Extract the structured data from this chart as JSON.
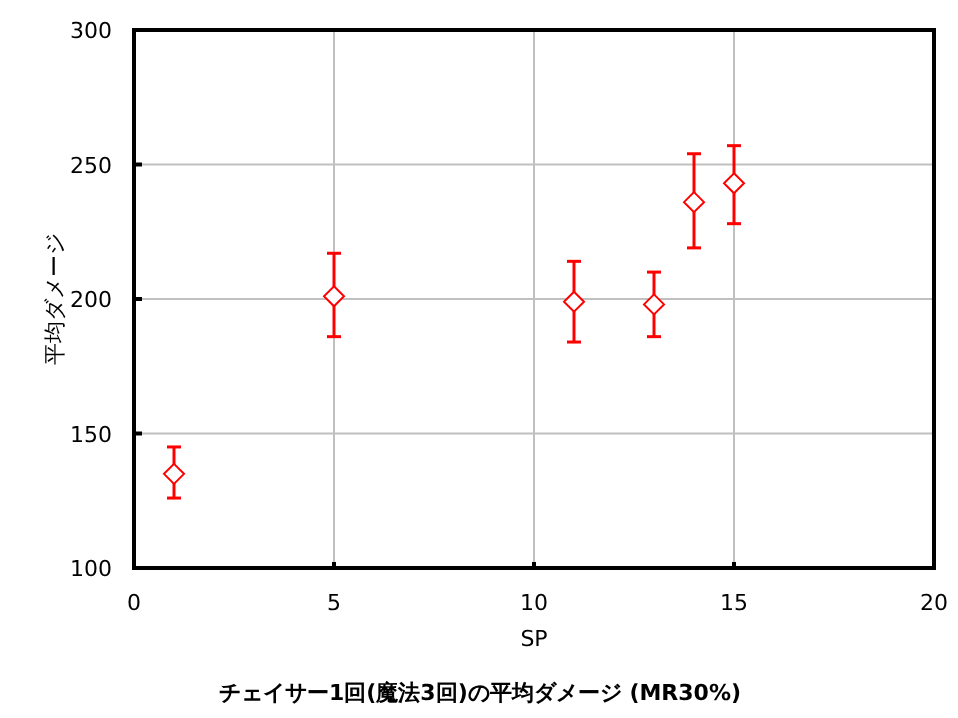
{
  "chart_data": {
    "type": "scatter",
    "title": "チェイサー1回(魔法3回)の平均ダメージ (MR30%)",
    "xlabel": "SP",
    "ylabel": "平均ダメージ",
    "x": [
      1,
      5,
      11,
      13,
      14,
      15
    ],
    "series": [
      {
        "color": "#ff0000",
        "values": [
          135,
          201,
          199,
          198,
          236,
          243
        ],
        "errors": [
          [
            126,
            145
          ],
          [
            186,
            217
          ],
          [
            184,
            214
          ],
          [
            186,
            210
          ],
          [
            219,
            254
          ],
          [
            228,
            257
          ]
        ]
      }
    ],
    "xlim": [
      0,
      20
    ],
    "xticks": [
      0,
      5,
      10,
      15,
      20
    ],
    "ylim": [
      100,
      300
    ],
    "yticks": [
      100,
      150,
      200,
      250,
      300
    ],
    "grid": true,
    "marker": "diamond"
  }
}
